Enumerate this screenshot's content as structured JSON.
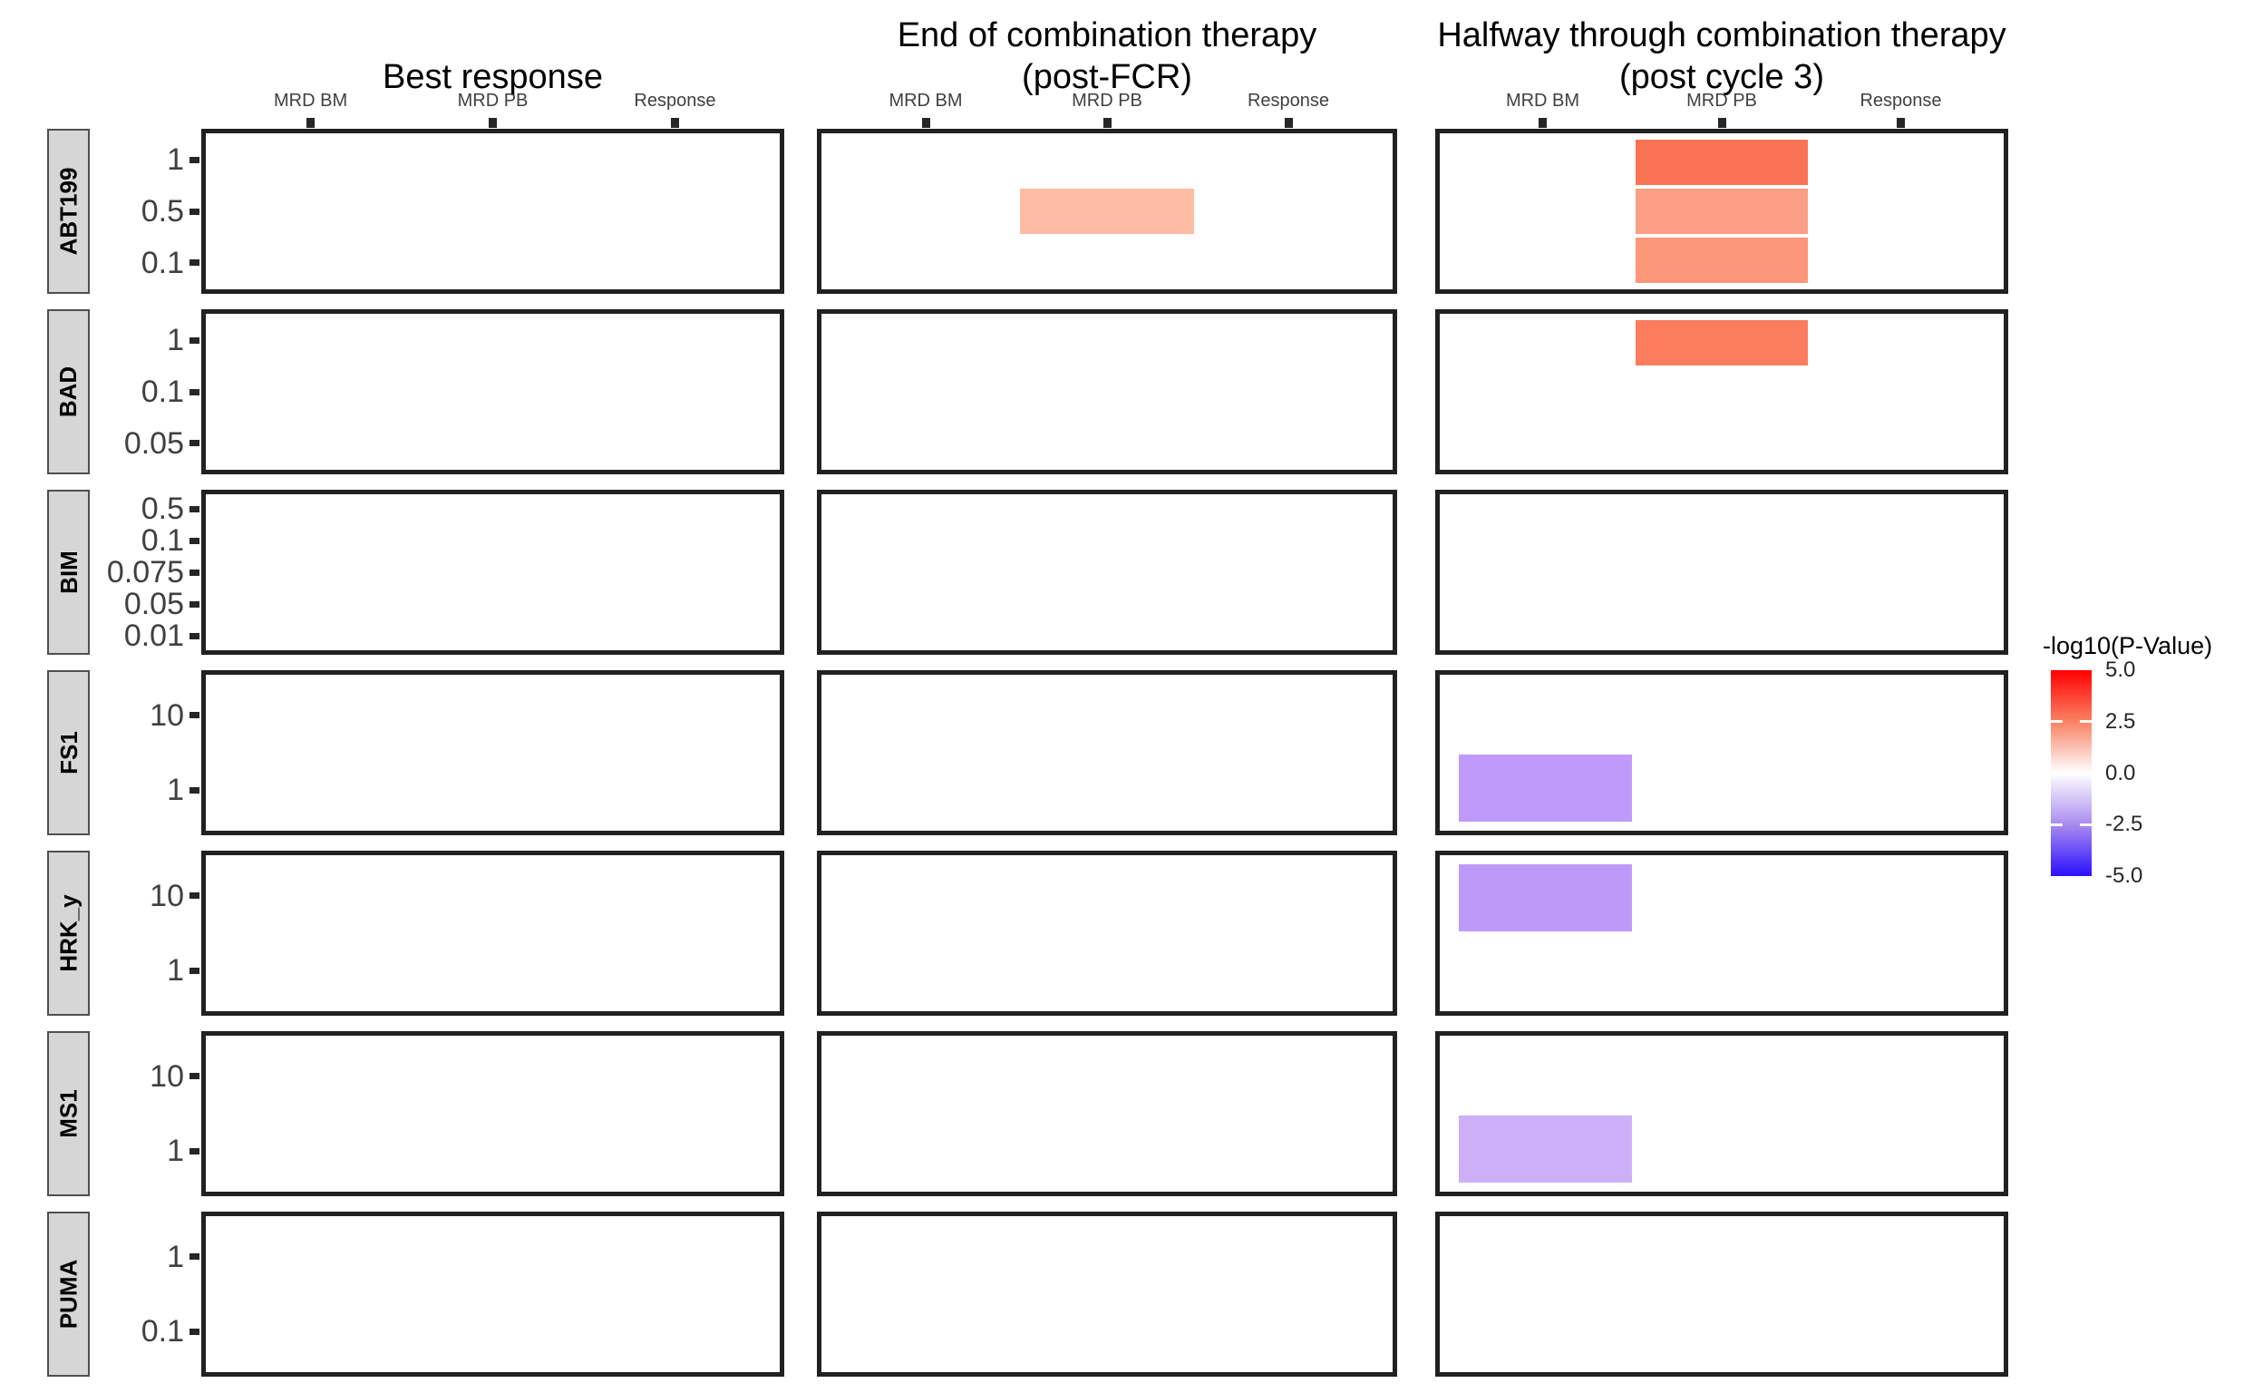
{
  "chart_data": {
    "type": "heatmap",
    "description": "Faceted tile heatmap (ggplot2-style) of -log10 p-values; 7 facet rows (BH3 profiling peptides/drug at several concentrations) x 3 facet columns (clinical endpoints); x categories are outcome measures; most cells are empty (non-significant).",
    "facet_columns": [
      {
        "title_lines": [
          "Best response"
        ]
      },
      {
        "title_lines": [
          "End of combination therapy",
          "(post-FCR)"
        ]
      },
      {
        "title_lines": [
          "Halfway through combination therapy",
          "(post cycle 3)"
        ]
      }
    ],
    "x_categories": [
      "MRD BM",
      "MRD PB",
      "Response"
    ],
    "facet_rows": [
      {
        "label": "ABT199",
        "y_categories": [
          "1",
          "0.5",
          "0.1"
        ]
      },
      {
        "label": "BAD",
        "y_categories": [
          "1",
          "0.1",
          "0.05"
        ]
      },
      {
        "label": "BIM",
        "y_categories": [
          "0.5",
          "0.1",
          "0.075",
          "0.05",
          "0.01"
        ]
      },
      {
        "label": "FS1",
        "y_categories": [
          "10",
          "1"
        ]
      },
      {
        "label": "HRK_y",
        "y_categories": [
          "10",
          "1"
        ]
      },
      {
        "label": "MS1",
        "y_categories": [
          "10",
          "1"
        ]
      },
      {
        "label": "PUMA",
        "y_categories": [
          "1",
          "0.1"
        ]
      }
    ],
    "tiles": [
      {
        "facet_col": 1,
        "facet_row": "ABT199",
        "x": "MRD PB",
        "y": "0.5",
        "fill": "#FDBCA4",
        "value_approx": 1.3
      },
      {
        "facet_col": 2,
        "facet_row": "ABT199",
        "x": "MRD PB",
        "y": "1",
        "fill": "#FB7355",
        "value_approx": 2.6
      },
      {
        "facet_col": 2,
        "facet_row": "ABT199",
        "x": "MRD PB",
        "y": "0.5",
        "fill": "#FC9E83",
        "value_approx": 1.8
      },
      {
        "facet_col": 2,
        "facet_row": "ABT199",
        "x": "MRD PB",
        "y": "0.1",
        "fill": "#FB9678",
        "value_approx": 1.9
      },
      {
        "facet_col": 2,
        "facet_row": "BAD",
        "x": "MRD PB",
        "y": "1",
        "fill": "#FB7D5E",
        "value_approx": 2.4
      },
      {
        "facet_col": 2,
        "facet_row": "FS1",
        "x": "MRD BM",
        "y": "1",
        "fill": "#C09AFA",
        "value_approx": -1.8
      },
      {
        "facet_col": 2,
        "facet_row": "HRK_y",
        "x": "MRD BM",
        "y": "10",
        "fill": "#BE9AF8",
        "value_approx": -1.9
      },
      {
        "facet_col": 2,
        "facet_row": "MS1",
        "x": "MRD BM",
        "y": "1",
        "fill": "#CDAFF8",
        "value_approx": -1.5
      }
    ],
    "legend": {
      "title": "-log10(P-Value)",
      "tick_labels": [
        "5.0",
        "2.5",
        "0.0",
        "-2.5",
        "-5.0"
      ],
      "tick_values": [
        5.0,
        2.5,
        0.0,
        -2.5,
        -5.0
      ],
      "range": [
        -5,
        5
      ],
      "gradient": {
        "high": "#FF0000",
        "mid": "#FFFFFF",
        "low": "#2A10FF"
      },
      "position": "right"
    },
    "colors": {
      "panel_border": "#212121",
      "strip_fill": "#D6D6D6",
      "strip_border": "#4F4F4F",
      "axis_text": "#404040",
      "tick_mark": "#262626",
      "title_text": "#000000",
      "background": "#FFFFFF"
    },
    "layout_hints": {
      "grid": "off",
      "facet_grid": "7 rows x 3 cols",
      "x_axis_position": "top",
      "legend_position": "right"
    }
  }
}
